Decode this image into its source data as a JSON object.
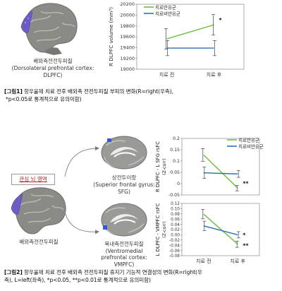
{
  "figure1": {
    "brain_label": [
      "배외측전전두피질",
      "(Dorsolateral prefrontal cortex:",
      "DLPFC)"
    ],
    "caption_prefix": "[그림1]",
    "caption_line1": " 항우울제 치료 전후 배외측 전전두피질 부피의 변화(R=right(우측),",
    "caption_line2": "*p<0.05로 통계적으로 유의미함)"
  },
  "figure2": {
    "roi_label": "관심 뇌 영역",
    "roi_brain_label": "배외측전전두피질",
    "sfg_label": [
      "상전두이랑",
      "(Superior frontal gyrus:",
      "SFG)"
    ],
    "vmpfc_label": [
      "복내측전전두피질",
      "(Ventromedial",
      "prefrontal cortex:",
      "VMPFC)"
    ],
    "caption_prefix": "[그림2]",
    "caption_line1": " 항우울제 치료 전후 배외측 전전두피질 휴지기 기능적 연결성의 변화(R=right(우",
    "caption_line2": "측), L=left(좌측), *p<0.05, **p<0.01로 통계적으로 유의미함)"
  },
  "colors": {
    "responder": "#6abf3c",
    "nonresponder": "#2f6fb5",
    "errorbar": "#444444",
    "roi_text": "#b02020"
  },
  "chart_data": [
    {
      "type": "line",
      "ylabel": "R DLPFC volume (mm³)",
      "categories": [
        "치료 전",
        "치료 후"
      ],
      "ylim": [
        19000,
        20200
      ],
      "yticks": [
        19000,
        19200,
        19400,
        19600,
        19800,
        20000,
        20200
      ],
      "legend": "top-left",
      "series": [
        {
          "name": "치료반응군",
          "color": "#6abf3c",
          "values": [
            19560,
            19820
          ],
          "err": [
            190,
            190
          ]
        },
        {
          "name": "치료비반응군",
          "color": "#2f6fb5",
          "values": [
            19390,
            19390
          ],
          "err": [
            140,
            140
          ]
        }
      ],
      "annotations": [
        {
          "category": 1,
          "text": "*"
        }
      ]
    },
    {
      "type": "line",
      "ylabel": "R DLPFC - L SFG rsFC",
      "ylabel2": "(Z-corr)",
      "categories": [
        "",
        ""
      ],
      "ylim": [
        -0.05,
        0.2
      ],
      "yticks": [
        -0.05,
        0,
        0.05,
        0.1,
        0.15,
        0.2
      ],
      "legend": "top-right",
      "series": [
        {
          "name": "치료반응군",
          "color": "#6abf3c",
          "values": [
            0.127,
            -0.02
          ],
          "err": [
            0.028,
            0.012
          ]
        },
        {
          "name": "치료비반응군",
          "color": "#2f6fb5",
          "values": [
            0.048,
            0.043
          ],
          "err": [
            0.025,
            0.015
          ]
        }
      ],
      "annotations": [
        {
          "category": 1,
          "text": "**"
        }
      ]
    },
    {
      "type": "line",
      "ylabel": "L DLPFC - VMPFC rsFC",
      "ylabel2": "(Z-corr)",
      "categories": [
        "치료 전",
        "치료 후"
      ],
      "ylim": [
        -0.08,
        0.12
      ],
      "yticks": [
        -0.08,
        -0.06,
        -0.04,
        -0.02,
        0,
        0.02,
        0.04,
        0.06,
        0.08,
        0.1,
        0.12
      ],
      "tick_labels": [
        "-0.08",
        "-0.06",
        "-0.04",
        "-0.02",
        "0.00",
        "0.02",
        "0.04",
        "0.06",
        "0.08",
        "0.10",
        "0.12"
      ],
      "series": [
        {
          "name": "치료반응군",
          "color": "#6abf3c",
          "values": [
            0.079,
            -0.036
          ],
          "err": [
            0.018,
            0.012
          ]
        },
        {
          "name": "치료비반응군",
          "color": "#2f6fb5",
          "values": [
            0.034,
            0.0
          ],
          "err": [
            0.018,
            0.012
          ]
        }
      ],
      "annotations": [
        {
          "category": 1,
          "text": "*",
          "series": 1
        },
        {
          "category": 1,
          "text": "**",
          "series": 0
        }
      ]
    }
  ]
}
